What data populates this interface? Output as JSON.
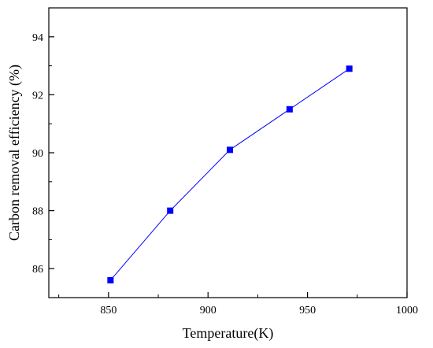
{
  "chart_data": {
    "type": "line",
    "title": "",
    "xlabel": "Temperature(K)",
    "ylabel": "Carbon removal efficiency (%)",
    "xlim": [
      820,
      1000
    ],
    "ylim": [
      85,
      95
    ],
    "xticks": [
      850,
      900,
      950,
      1000
    ],
    "yticks": [
      86,
      88,
      90,
      92,
      94
    ],
    "xtick_labels": [
      "850",
      "900",
      "950",
      "1000"
    ],
    "ytick_labels": [
      "86",
      "88",
      "90",
      "92",
      "94"
    ],
    "grid": false,
    "legend": "none",
    "series": [
      {
        "x": [
          851,
          881,
          911,
          941,
          971
        ],
        "y": [
          85.6,
          88.0,
          90.1,
          91.5,
          92.9
        ],
        "color": "#0000ff",
        "marker": "square"
      }
    ]
  }
}
